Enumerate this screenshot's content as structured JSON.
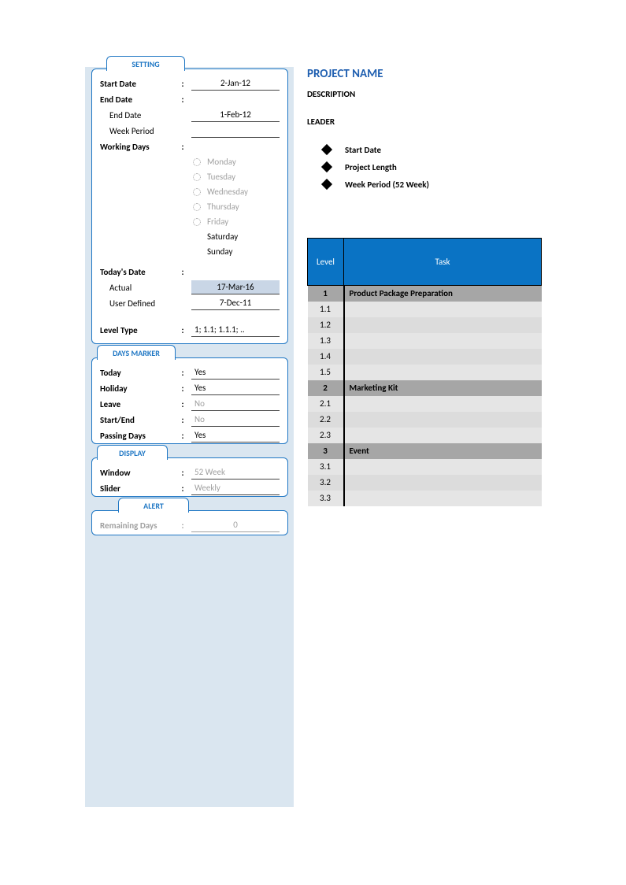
{
  "tabs": {
    "setting": "SETTING",
    "daysMarker": "DAYS MARKER",
    "display": "DISPLAY",
    "alert": "ALERT"
  },
  "setting": {
    "startDate": {
      "label": "Start Date",
      "value": "2-Jan-12"
    },
    "endDate": {
      "label": "End Date"
    },
    "endDateSub": {
      "label": "End Date",
      "value": "1-Feb-12"
    },
    "weekPeriod": {
      "label": "Week Period",
      "value": ""
    },
    "workingDays": {
      "label": "Working Days"
    },
    "days": [
      {
        "label": "Monday",
        "active": false,
        "hasIcon": true
      },
      {
        "label": "Tuesday",
        "active": false,
        "hasIcon": true
      },
      {
        "label": "Wednesday",
        "active": false,
        "hasIcon": true
      },
      {
        "label": "Thursday",
        "active": false,
        "hasIcon": true
      },
      {
        "label": "Friday",
        "active": false,
        "hasIcon": true
      },
      {
        "label": "Saturday",
        "active": true,
        "hasIcon": false
      },
      {
        "label": "Sunday",
        "active": true,
        "hasIcon": false
      }
    ],
    "todaysDate": {
      "label": "Today's Date"
    },
    "actual": {
      "label": "Actual",
      "value": "17-Mar-16"
    },
    "userDefined": {
      "label": "User Defined",
      "value": "7-Dec-11"
    },
    "levelType": {
      "label": "Level Type",
      "value": "1; 1.1; 1.1.1; .."
    }
  },
  "daysMarker": {
    "today": {
      "label": "Today",
      "value": "Yes"
    },
    "holiday": {
      "label": "Holiday",
      "value": "Yes"
    },
    "leave": {
      "label": "Leave",
      "value": "No"
    },
    "startEnd": {
      "label": "Start/End",
      "value": "No"
    },
    "passingDays": {
      "label": "Passing Days",
      "value": "Yes"
    }
  },
  "display": {
    "window": {
      "label": "Window",
      "value": "52 Week"
    },
    "slider": {
      "label": "Slider",
      "value": "Weekly"
    }
  },
  "alert": {
    "remainingDays": {
      "label": "Remaining Days",
      "value": "0"
    }
  },
  "project": {
    "title": "PROJECT NAME",
    "description": "DESCRIPTION",
    "leader": "LEADER",
    "bullets": [
      "Start Date",
      "Project Length",
      "Week Period (52 Week)"
    ]
  },
  "table": {
    "headers": {
      "level": "Level",
      "task": "Task"
    },
    "rows": [
      {
        "type": "h",
        "level": "1",
        "task": "Product Package Preparation"
      },
      {
        "type": "s",
        "level": "1.1",
        "task": ""
      },
      {
        "type": "s",
        "level": "1.2",
        "task": ""
      },
      {
        "type": "s",
        "level": "1.3",
        "task": ""
      },
      {
        "type": "s",
        "level": "1.4",
        "task": ""
      },
      {
        "type": "s",
        "level": "1.5",
        "task": ""
      },
      {
        "type": "h",
        "level": "2",
        "task": "Marketing Kit"
      },
      {
        "type": "s",
        "level": "2.1",
        "task": ""
      },
      {
        "type": "s",
        "level": "2.2",
        "task": ""
      },
      {
        "type": "s",
        "level": "2.3",
        "task": ""
      },
      {
        "type": "h",
        "level": "3",
        "task": "Event"
      },
      {
        "type": "s",
        "level": "3.1",
        "task": ""
      },
      {
        "type": "s",
        "level": "3.2",
        "task": ""
      },
      {
        "type": "s",
        "level": "3.3",
        "task": ""
      }
    ]
  },
  "colors": {
    "panelBg": "#dae6f0",
    "border": "#1f77c4",
    "headerBlue": "#0a73c4",
    "greyHead": "#a6a6a6",
    "greyRow": "#d9d9d9"
  }
}
